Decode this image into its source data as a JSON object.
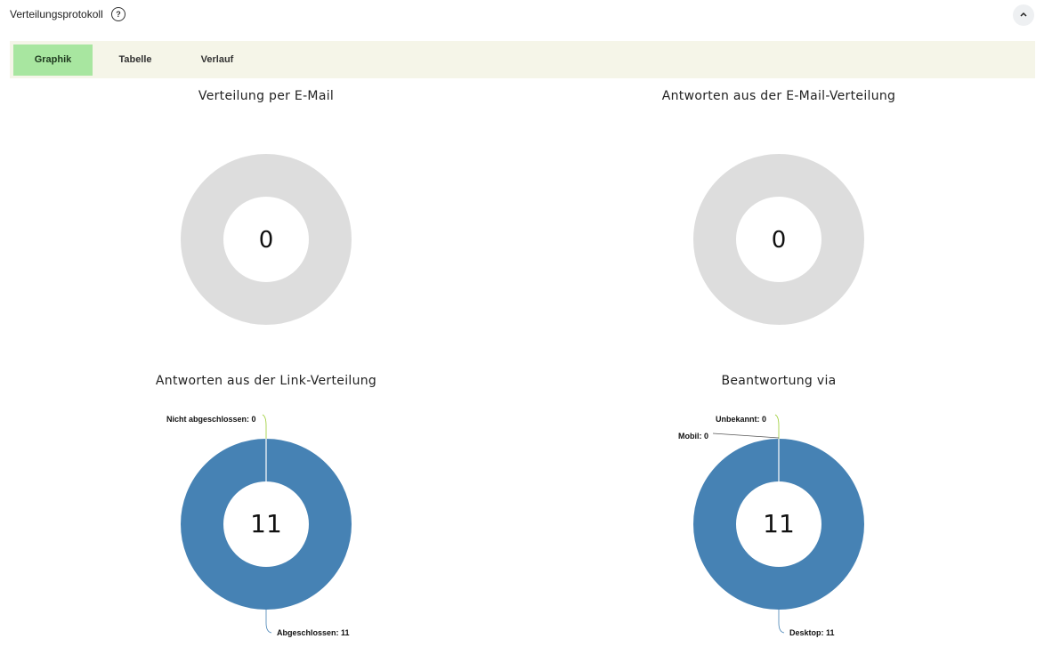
{
  "header": {
    "title": "Verteilungsprotokoll",
    "help_icon": "?"
  },
  "tabs": [
    {
      "label": "Graphik",
      "active": true
    },
    {
      "label": "Tabelle",
      "active": false
    },
    {
      "label": "Verlauf",
      "active": false
    }
  ],
  "charts": {
    "email": {
      "title": "Verteilung per E-Mail",
      "center": "0"
    },
    "email_answers": {
      "title": "Antworten aus der E-Mail-Verteilung",
      "center": "0"
    },
    "link_answers": {
      "title": "Antworten aus der Link-Verteilung",
      "center": "11"
    },
    "answered_via": {
      "title": "Beantwortung via",
      "center": "11"
    }
  },
  "colors": {
    "empty": "#dddddd",
    "series": "#4682b4",
    "leader_green": "#9acd32",
    "tab_active": "#a8e6a0",
    "tabbar_bg": "#f5f5e8"
  },
  "chart_data": [
    {
      "type": "pie",
      "title": "Verteilung per E-Mail",
      "categories": [],
      "values": [],
      "total": 0
    },
    {
      "type": "pie",
      "title": "Antworten aus der E-Mail-Verteilung",
      "categories": [],
      "values": [],
      "total": 0
    },
    {
      "type": "pie",
      "title": "Antworten aus der Link-Verteilung",
      "categories": [
        "Nicht abgeschlossen",
        "Abgeschlossen"
      ],
      "values": [
        0,
        11
      ],
      "total": 11
    },
    {
      "type": "pie",
      "title": "Beantwortung via",
      "categories": [
        "Unbekannt",
        "Mobil",
        "Desktop"
      ],
      "values": [
        0,
        0,
        11
      ],
      "total": 11
    }
  ],
  "labels": {
    "nicht_abgeschlossen": "Nicht abgeschlossen: 0",
    "abgeschlossen": "Abgeschlossen: 11",
    "unbekannt": "Unbekannt: 0",
    "mobil": "Mobil: 0",
    "desktop": "Desktop: 11"
  }
}
